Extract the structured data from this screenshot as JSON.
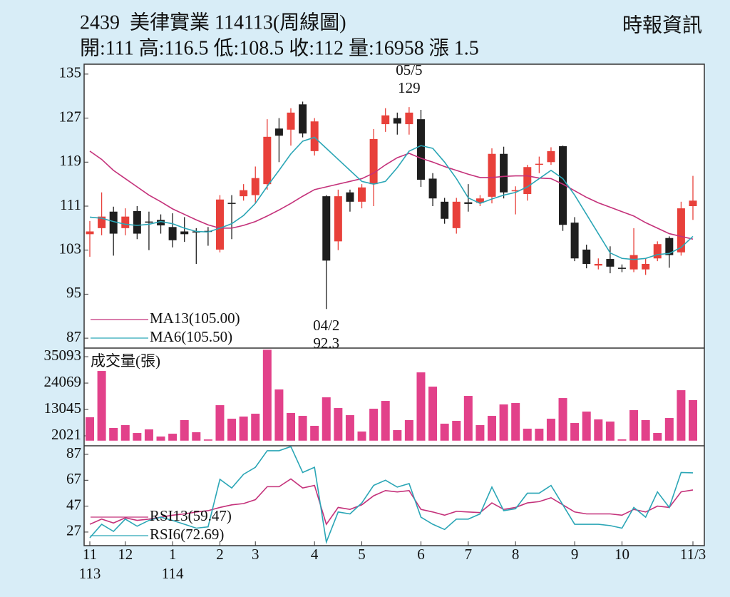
{
  "header": {
    "title": "2439  美律實業 114113(周線圖)",
    "info": "開:111 高:116.5 低:108.5 收:112 量:16958 漲 1.5",
    "source": "時報資訊"
  },
  "chart_data": [
    {
      "type": "candlestick",
      "categories": [
        "11",
        null,
        null,
        "12",
        null,
        null,
        null,
        "1",
        null,
        null,
        null,
        "2",
        null,
        null,
        "3",
        null,
        null,
        null,
        null,
        "4",
        null,
        null,
        null,
        "5",
        null,
        null,
        null,
        null,
        "6",
        null,
        null,
        null,
        "7",
        null,
        null,
        null,
        "8",
        null,
        null,
        null,
        null,
        "9",
        null,
        null,
        null,
        "10",
        null,
        null,
        null,
        null,
        null,
        "11/3"
      ],
      "year_labels": [
        "113",
        null,
        null,
        null,
        null,
        null,
        null,
        "114",
        null,
        null,
        null,
        null,
        null,
        null,
        null,
        null,
        null,
        null,
        null,
        null,
        null,
        null,
        null,
        null,
        null,
        null,
        null,
        null,
        null,
        null,
        null,
        null,
        null,
        null,
        null,
        null,
        null,
        null,
        null,
        null,
        null,
        null,
        null,
        null,
        null,
        null,
        null,
        null,
        null,
        null,
        null,
        null
      ],
      "open": [
        105.9,
        107,
        110,
        107,
        110.1,
        108.2,
        108.5,
        107.2,
        106.4,
        106.4,
        106.5,
        103.1,
        111.6,
        112.8,
        113,
        115,
        125.1,
        124.9,
        129.5,
        121,
        112.8,
        104.6,
        113.5,
        111.8,
        115,
        125.9,
        127,
        125.9,
        126.8,
        116,
        111.8,
        107,
        111.7,
        111.6,
        112.7,
        120.5,
        113.7,
        113.2,
        118.6,
        119,
        121.9,
        108,
        103.1,
        100.2,
        101.4,
        99.8,
        99.5,
        99.5,
        101.5,
        105.2,
        102.6,
        111
      ],
      "high": [
        108.3,
        113.5,
        110.9,
        110.6,
        111,
        110,
        109.5,
        109.7,
        109,
        107,
        107.2,
        113,
        113,
        115,
        118.2,
        126.8,
        127,
        128.8,
        130,
        127,
        113,
        114,
        114,
        115,
        125,
        128.8,
        128,
        129,
        128.5,
        117,
        112.5,
        112.5,
        115,
        113,
        121.5,
        121.8,
        114.6,
        118.5,
        120,
        121.7,
        122,
        109,
        104,
        101.5,
        103.7,
        100.4,
        107,
        101.5,
        104.6,
        105.5,
        111.8,
        116.5
      ],
      "low": [
        101.8,
        105.7,
        102,
        105.7,
        105,
        103,
        106,
        103.5,
        104.5,
        100.5,
        103.8,
        102.6,
        105,
        112,
        111.5,
        114,
        119,
        122,
        123.5,
        120.2,
        92.3,
        103,
        110,
        110.6,
        111,
        124.5,
        124,
        124,
        114.5,
        111,
        107.8,
        106,
        110,
        111,
        111.5,
        112.4,
        109.5,
        112,
        117,
        118.5,
        106.5,
        101,
        99.7,
        99.5,
        98.8,
        99,
        99,
        98.5,
        101,
        99.8,
        102,
        108.5
      ],
      "close": [
        106.4,
        109.1,
        106,
        109.1,
        106,
        108,
        107.5,
        104.8,
        105.9,
        106.3,
        106.4,
        112.2,
        111.4,
        113.9,
        116.1,
        123.6,
        123.8,
        128,
        124.2,
        126.4,
        101.1,
        112.8,
        111.8,
        114.4,
        123.2,
        127.5,
        126,
        128,
        115.8,
        112.4,
        108.7,
        111.8,
        111.4,
        112.4,
        120.5,
        113.5,
        113.9,
        118.1,
        118.7,
        121,
        107.6,
        101.5,
        100.5,
        100.5,
        100,
        99.6,
        102.1,
        100.5,
        104.1,
        102.1,
        110.6,
        112
      ],
      "up_color": "#e8403a",
      "down_color": "#1e1e1e",
      "series": [
        {
          "name": "MA13(105.00)",
          "color": "#c4317a",
          "values": [
            121,
            119.5,
            117.5,
            116,
            114.5,
            113,
            111.8,
            110.5,
            109.5,
            108.5,
            107.6,
            107,
            107,
            107.5,
            108.2,
            109.2,
            110.3,
            111.5,
            112.8,
            114,
            114.5,
            115,
            115.5,
            116,
            117,
            118.5,
            119.8,
            120.6,
            119.7,
            119,
            118.2,
            117.5,
            116.8,
            116.2,
            116.2,
            116.4,
            116.5,
            116.5,
            116.1,
            116,
            115,
            113.8,
            112.6,
            111.6,
            110.8,
            110,
            109.2,
            108,
            107,
            106,
            105.5,
            105
          ]
        },
        {
          "name": "MA6(105.50)",
          "color": "#2ba6b6",
          "values": [
            109,
            108.8,
            108.2,
            107.7,
            107.5,
            107.7,
            108.2,
            107.8,
            107,
            106.4,
            106.3,
            107,
            107.8,
            109.3,
            111.5,
            114.6,
            117.5,
            120.5,
            122.8,
            123.5,
            121.5,
            119.5,
            117.5,
            115.5,
            115,
            115.5,
            118,
            121,
            122,
            121.5,
            119,
            116,
            112.5,
            111.5,
            112.3,
            113,
            113.5,
            114.5,
            116,
            117.5,
            116,
            113,
            109.5,
            106,
            102.5,
            101.5,
            101.3,
            101.5,
            102.2,
            102.4,
            103.5,
            105.5
          ]
        }
      ],
      "annotations": [
        {
          "text": "05/5",
          "value": 129
        },
        {
          "text": "04/2",
          "value": 92.3
        }
      ],
      "ylim": [
        85.2,
        136.8
      ],
      "yticks": [
        87,
        95,
        103,
        111,
        119,
        127,
        135
      ],
      "legend": "lower left",
      "grid": false
    },
    {
      "type": "bar",
      "label": "成交量(張)",
      "label_color": "#c4317a",
      "color": "#e2418a",
      "values": [
        9770,
        29140,
        5300,
        6490,
        3200,
        4700,
        1720,
        2900,
        8580,
        3510,
        500,
        14830,
        9170,
        10070,
        11260,
        38000,
        21390,
        11560,
        10360,
        6190,
        18110,
        13640,
        10660,
        3810,
        13340,
        16620,
        4400,
        8580,
        28540,
        22580,
        7090,
        8280,
        18710,
        6490,
        10360,
        15130,
        15730,
        5000,
        5000,
        9170,
        17810,
        7380,
        12150,
        8870,
        7980,
        530,
        12750,
        8580,
        3210,
        9470,
        21090,
        16958
      ],
      "ylim": [
        -2150,
        38700
      ],
      "yticks": [
        2021,
        13045,
        24069,
        35093
      ],
      "grid": false
    },
    {
      "type": "line",
      "series": [
        {
          "name": "RSI13(59.47)",
          "color": "#c4317a",
          "values": [
            33,
            37,
            34,
            38,
            36,
            37,
            38.5,
            40,
            41,
            42.5,
            43.5,
            46,
            48,
            49,
            52,
            62,
            62,
            68,
            61,
            63,
            33,
            46,
            44.5,
            48,
            55,
            59,
            58,
            59,
            44.5,
            42.5,
            40,
            43,
            42.5,
            42,
            49.5,
            44.5,
            46,
            49.5,
            50.5,
            53.5,
            48,
            42.5,
            41,
            41,
            41,
            40,
            44.5,
            42.5,
            47,
            46,
            58,
            59.47
          ]
        },
        {
          "name": "RSI6(72.69)",
          "color": "#2ba6b6",
          "values": [
            22.6,
            33,
            27.5,
            37,
            31.5,
            36,
            38.5,
            36,
            33,
            30,
            31,
            67.7,
            61,
            71.6,
            77,
            89.8,
            89.8,
            93,
            73,
            77,
            19.3,
            42.5,
            41,
            49.5,
            63,
            67,
            61.7,
            64.4,
            38.5,
            33,
            29,
            37,
            37,
            41,
            61.7,
            43.5,
            45,
            57,
            57,
            63,
            48,
            33,
            33,
            33,
            32,
            30,
            46,
            38.5,
            58,
            46,
            73,
            72.69
          ]
        }
      ],
      "ylim": [
        16.5,
        93.6
      ],
      "yticks": [
        27,
        47,
        67,
        87
      ],
      "legend": "lower left",
      "grid": false
    }
  ]
}
